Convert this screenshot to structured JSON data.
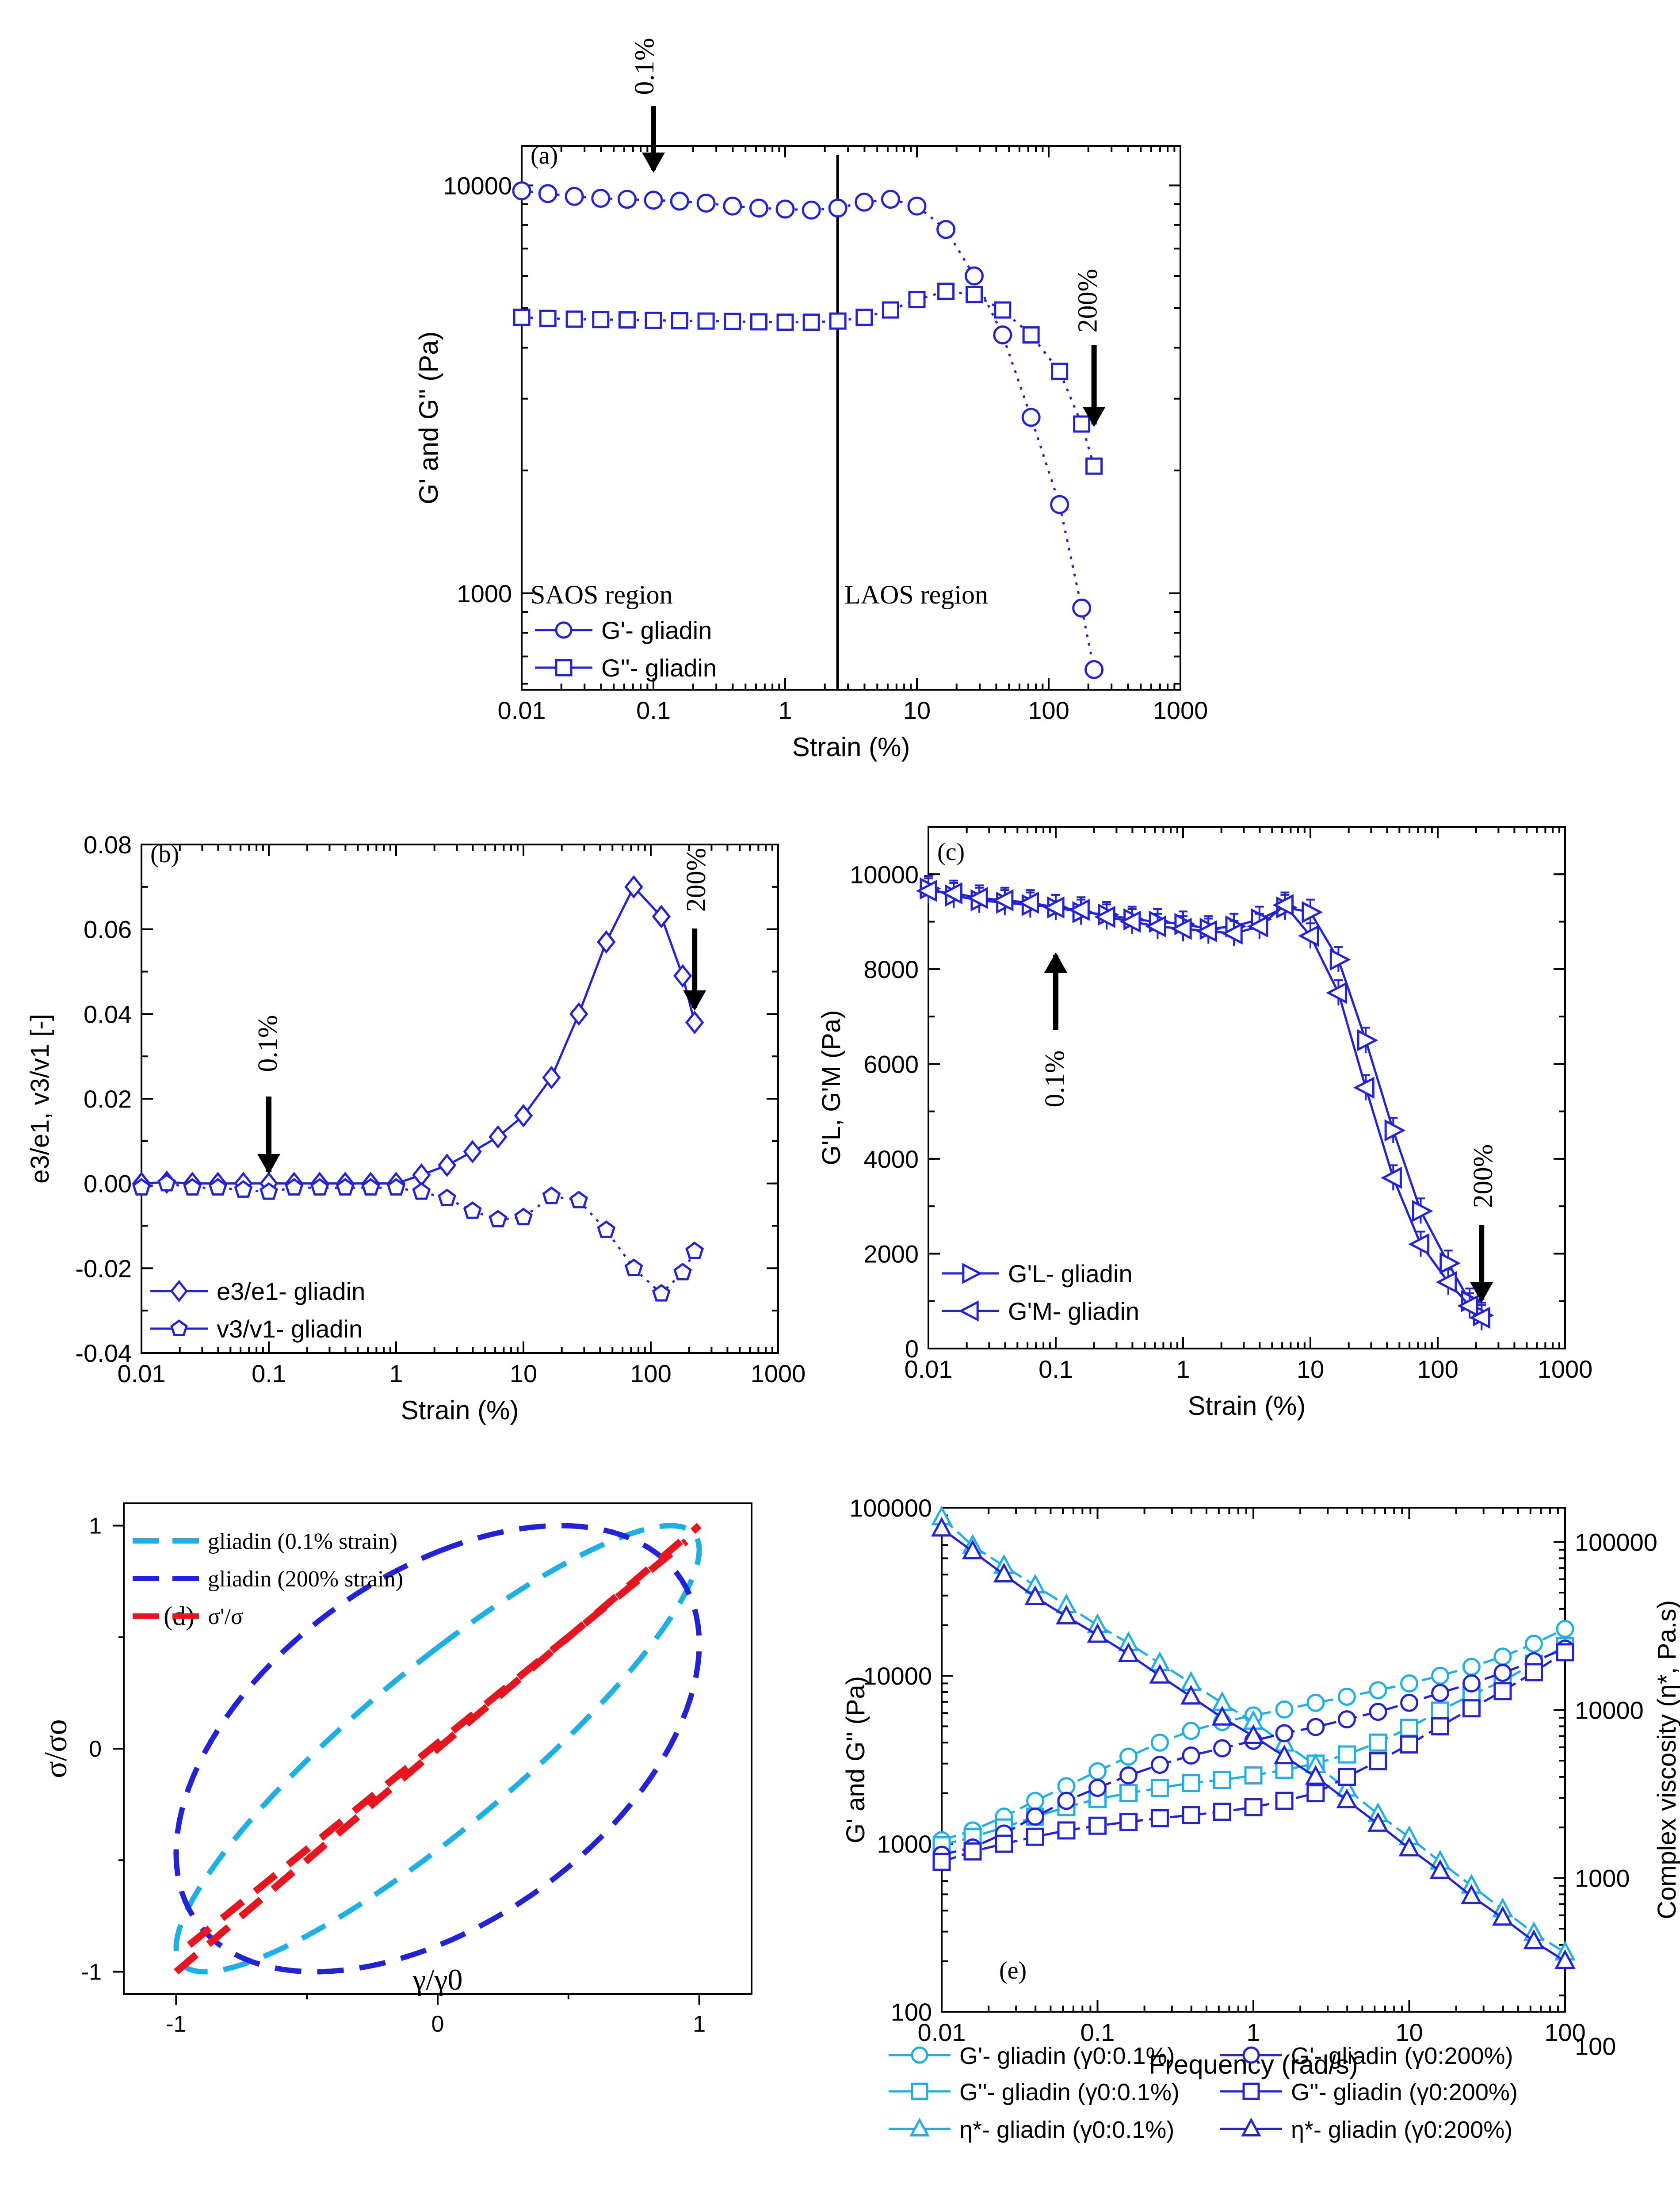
{
  "figure": {
    "colors": {
      "blue": "#2222dd",
      "light_blue": "#1cb0e8",
      "red": "#e8141e",
      "gray": "#777777",
      "black": "#000000"
    }
  },
  "chart_data": [
    {
      "id": "a",
      "panel_label": "(a)",
      "type": "line",
      "xscale": "log",
      "yscale": "log",
      "xlim": [
        0.01,
        1000
      ],
      "ylim": [
        580,
        12500
      ],
      "xlabel": "Strain (%)",
      "ylabel": "G' and G'' (Pa)",
      "xticks": [
        "0.01",
        "0.1",
        "1",
        "10",
        "100",
        "1000"
      ],
      "yticks": [
        "1000",
        "10000"
      ],
      "series": [
        {
          "name": "G'- gliadin",
          "marker": "circle",
          "color": "#2222dd",
          "x": [
            0.01,
            0.0158,
            0.0251,
            0.0398,
            0.0631,
            0.1,
            0.158,
            0.251,
            0.398,
            0.631,
            1,
            1.58,
            2.51,
            3.98,
            6.31,
            10,
            16.6,
            27.2,
            44.7,
            73.5,
            121,
            178,
            221
          ],
          "y": [
            9700,
            9550,
            9400,
            9300,
            9250,
            9200,
            9150,
            9050,
            8900,
            8800,
            8750,
            8700,
            8800,
            9100,
            9250,
            8900,
            7800,
            6000,
            4300,
            2700,
            1650,
            920,
            650
          ]
        },
        {
          "name": "G''- gliadin",
          "marker": "square",
          "color": "#2222dd",
          "x": [
            0.01,
            0.0158,
            0.0251,
            0.0398,
            0.0631,
            0.1,
            0.158,
            0.251,
            0.398,
            0.631,
            1,
            1.58,
            2.51,
            3.98,
            6.31,
            10,
            16.6,
            27.2,
            44.7,
            73.5,
            121,
            178,
            221
          ],
          "y": [
            4750,
            4720,
            4700,
            4690,
            4680,
            4670,
            4660,
            4650,
            4640,
            4630,
            4620,
            4620,
            4650,
            4750,
            4950,
            5250,
            5500,
            5400,
            4950,
            4300,
            3500,
            2600,
            2050
          ]
        }
      ],
      "annotations": [
        {
          "text": "0.1%",
          "x": 0.1,
          "dir": "down"
        },
        {
          "text": "200%",
          "x": 221,
          "dir": "down"
        }
      ],
      "region_divider_x": 2.5,
      "region_labels": [
        "SAOS region",
        "LAOS region"
      ]
    },
    {
      "id": "b",
      "panel_label": "(b)",
      "type": "line",
      "xscale": "log",
      "yscale": "linear",
      "xlim": [
        0.01,
        1000
      ],
      "ylim": [
        -0.04,
        0.08
      ],
      "xlabel": "Strain (%)",
      "ylabel": "e3/e1, v3/v1 [-]",
      "xticks": [
        "0.01",
        "0.1",
        "1",
        "10",
        "100",
        "1000"
      ],
      "yticks": [
        "-0.04",
        "-0.02",
        "0.00",
        "0.02",
        "0.04",
        "0.06",
        "0.08"
      ],
      "series": [
        {
          "name": "e3/e1- gliadin",
          "marker": "diamond",
          "color": "#2222dd",
          "x": [
            0.01,
            0.0158,
            0.0251,
            0.0398,
            0.0631,
            0.1,
            0.158,
            0.251,
            0.398,
            0.631,
            1,
            1.58,
            2.51,
            3.98,
            6.31,
            10,
            16.6,
            27.2,
            44.7,
            73.5,
            121,
            178,
            221
          ],
          "y": [
            0.0,
            0.0003,
            0.0,
            0.0,
            0.0,
            0.0,
            0.0,
            0.0,
            0.0,
            0.0,
            0.0,
            0.002,
            0.0043,
            0.0075,
            0.011,
            0.016,
            0.025,
            0.04,
            0.057,
            0.07,
            0.063,
            0.049,
            0.038
          ]
        },
        {
          "name": "v3/v1- gliadin",
          "marker": "pentagon",
          "color": "#2222dd",
          "x": [
            0.01,
            0.0158,
            0.0251,
            0.0398,
            0.0631,
            0.1,
            0.158,
            0.251,
            0.398,
            0.631,
            1,
            1.58,
            2.51,
            3.98,
            6.31,
            10,
            16.6,
            27.2,
            44.7,
            73.5,
            121,
            178,
            221
          ],
          "y": [
            -0.001,
            0.0,
            -0.001,
            -0.001,
            -0.0015,
            -0.002,
            -0.001,
            -0.001,
            -0.001,
            -0.001,
            -0.001,
            -0.002,
            -0.0035,
            -0.0065,
            -0.0085,
            -0.008,
            -0.003,
            -0.004,
            -0.011,
            -0.02,
            -0.026,
            -0.021,
            -0.016
          ]
        }
      ],
      "annotations": [
        {
          "text": "0.1%",
          "x": 0.1,
          "dir": "down"
        },
        {
          "text": "200%",
          "x": 221,
          "dir": "down"
        }
      ]
    },
    {
      "id": "c",
      "panel_label": "(c)",
      "type": "line",
      "xscale": "log",
      "yscale": "linear",
      "xlim": [
        0.01,
        1000
      ],
      "ylim": [
        0,
        11000
      ],
      "xlabel": "Strain (%)",
      "ylabel": "G'L, G'M (Pa)",
      "xticks": [
        "0.01",
        "0.1",
        "1",
        "10",
        "100",
        "1000"
      ],
      "yticks": [
        "0",
        "2000",
        "4000",
        "6000",
        "8000",
        "10000"
      ],
      "series": [
        {
          "name": "G'L- gliadin",
          "marker": "triangle-right",
          "color": "#2222dd",
          "x": [
            0.01,
            0.0158,
            0.0251,
            0.0398,
            0.0631,
            0.1,
            0.158,
            0.251,
            0.398,
            0.631,
            1,
            1.58,
            2.51,
            3.98,
            6.31,
            10,
            16.6,
            27.2,
            44.7,
            73.5,
            121,
            178,
            221
          ],
          "y": [
            9700,
            9550,
            9450,
            9400,
            9350,
            9300,
            9200,
            9150,
            9050,
            9000,
            8950,
            8850,
            8900,
            9050,
            9300,
            9200,
            8200,
            6500,
            4600,
            2900,
            1800,
            1000,
            700
          ]
        },
        {
          "name": "G'M- gliadin",
          "marker": "triangle-left",
          "color": "#2222dd",
          "x": [
            0.01,
            0.0158,
            0.0251,
            0.0398,
            0.0631,
            0.1,
            0.158,
            0.251,
            0.398,
            0.631,
            1,
            1.58,
            2.51,
            3.98,
            6.31,
            10,
            16.6,
            27.2,
            44.7,
            73.5,
            121,
            178,
            221
          ],
          "y": [
            9650,
            9600,
            9500,
            9450,
            9400,
            9300,
            9250,
            9100,
            9000,
            8900,
            8850,
            8800,
            8750,
            8900,
            9350,
            8700,
            7500,
            5500,
            3600,
            2200,
            1400,
            900,
            650
          ]
        }
      ],
      "annotations": [
        {
          "text": "0.1%",
          "x": 0.1,
          "dir": "up"
        },
        {
          "text": "200%",
          "x": 221,
          "dir": "down"
        }
      ]
    },
    {
      "id": "d",
      "panel_label": "(d)",
      "type": "line",
      "xscale": "linear",
      "yscale": "linear",
      "xlim": [
        -1.2,
        1.2
      ],
      "ylim": [
        -1.1,
        1.1
      ],
      "xlabel": "γ/γ0",
      "ylabel": "σ/σo",
      "xticks": [
        "-1",
        "0",
        "1"
      ],
      "yticks": [
        "-1",
        "0",
        "1"
      ],
      "series": [
        {
          "name": "gliadin (0.1% strain)",
          "style": "dashed",
          "color": "#1cb0e8",
          "kind": "ellipse",
          "phase_deg": 27
        },
        {
          "name": "gliadin (200% strain)",
          "style": "dashed",
          "color": "#2222dd",
          "kind": "ellipse",
          "phase_deg": 62
        },
        {
          "name": "σ'/σ",
          "style": "dashed",
          "color": "#e8141e",
          "kind": "elastic",
          "phase_deg": 0
        }
      ]
    },
    {
      "id": "e",
      "panel_label": "(e)",
      "type": "line",
      "xscale": "log",
      "yscale": "log",
      "xlim": [
        0.01,
        100
      ],
      "ylim": [
        100,
        100000
      ],
      "y2lim": [
        160,
        160000
      ],
      "xlabel": "Frequency (rad/s)",
      "ylabel": "G' and G'' (Pa)",
      "y2label": "Complex viscosity (η*, Pa.s)",
      "xticks": [
        "0.01",
        "0.1",
        "1",
        "10",
        "100"
      ],
      "yticks": [
        "100",
        "1000",
        "10000",
        "100000"
      ],
      "y2ticks": [
        "100",
        "1000",
        "10000",
        "100000"
      ],
      "series": [
        {
          "name": "G'- gliadin (γ0:0.1%)",
          "marker": "circle",
          "color": "#1cb0e8",
          "axis": "left",
          "x": [
            0.01,
            0.0158,
            0.0251,
            0.0398,
            0.0631,
            0.1,
            0.158,
            0.251,
            0.398,
            0.631,
            1,
            1.58,
            2.51,
            3.98,
            6.31,
            10,
            15.8,
            25.1,
            39.8,
            63.1,
            100
          ],
          "y": [
            1050,
            1200,
            1450,
            1800,
            2200,
            2700,
            3300,
            4000,
            4700,
            5300,
            5800,
            6300,
            6900,
            7500,
            8200,
            9000,
            10000,
            11300,
            13000,
            15500,
            19000
          ]
        },
        {
          "name": "G''- gliadin (γ0:0.1%)",
          "marker": "square",
          "color": "#1cb0e8",
          "axis": "left",
          "x": [
            0.01,
            0.0158,
            0.0251,
            0.0398,
            0.0631,
            0.1,
            0.158,
            0.251,
            0.398,
            0.631,
            1,
            1.58,
            2.51,
            3.98,
            6.31,
            10,
            15.8,
            25.1,
            39.8,
            63.1,
            100
          ],
          "y": [
            980,
            1100,
            1250,
            1450,
            1650,
            1850,
            2000,
            2150,
            2300,
            2400,
            2550,
            2750,
            3000,
            3400,
            4000,
            4900,
            6200,
            7700,
            9300,
            11800,
            15000
          ]
        },
        {
          "name": "η*- gliadin (γ0:0.1%)",
          "marker": "triangle",
          "color": "#1cb0e8",
          "axis": "right",
          "x": [
            0.01,
            0.0158,
            0.0251,
            0.0398,
            0.0631,
            0.1,
            0.158,
            0.251,
            0.398,
            0.631,
            1,
            1.58,
            2.51,
            3.98,
            6.31,
            10,
            15.8,
            25.1,
            39.8,
            63.1,
            100
          ],
          "y": [
            140000,
            95000,
            72000,
            55000,
            42000,
            32000,
            25000,
            19000,
            14500,
            11000,
            8500,
            6300,
            4700,
            3400,
            2400,
            1750,
            1250,
            900,
            650,
            470,
            360
          ]
        },
        {
          "name": "G'- gliadin (γ0:200%)",
          "marker": "circle",
          "color": "#2222dd",
          "axis": "left",
          "x": [
            0.01,
            0.0158,
            0.0251,
            0.0398,
            0.0631,
            0.1,
            0.158,
            0.251,
            0.398,
            0.631,
            1,
            1.58,
            2.51,
            3.98,
            6.31,
            10,
            15.8,
            25.1,
            39.8,
            63.1,
            100
          ],
          "y": [
            860,
            950,
            1150,
            1450,
            1800,
            2150,
            2550,
            2950,
            3350,
            3700,
            4100,
            4550,
            4950,
            5500,
            6100,
            6900,
            7900,
            9000,
            10400,
            12200,
            14500
          ]
        },
        {
          "name": "G''- gliadin (γ0:200%)",
          "marker": "square",
          "color": "#2222dd",
          "axis": "left",
          "x": [
            0.01,
            0.0158,
            0.0251,
            0.0398,
            0.0631,
            0.1,
            0.158,
            0.251,
            0.398,
            0.631,
            1,
            1.58,
            2.51,
            3.98,
            6.31,
            10,
            15.8,
            25.1,
            39.8,
            63.1,
            100
          ],
          "y": [
            780,
            900,
            1000,
            1100,
            1200,
            1280,
            1350,
            1420,
            1480,
            1550,
            1650,
            1800,
            2000,
            2500,
            3100,
            3900,
            5000,
            6400,
            8100,
            10500,
            13800
          ]
        },
        {
          "name": "η*- gliadin (γ0:200%)",
          "marker": "triangle",
          "color": "#2222dd",
          "axis": "right",
          "x": [
            0.01,
            0.0158,
            0.0251,
            0.0398,
            0.0631,
            0.1,
            0.158,
            0.251,
            0.398,
            0.631,
            1,
            1.58,
            2.51,
            3.98,
            6.31,
            10,
            15.8,
            25.1,
            39.8,
            63.1,
            100
          ],
          "y": [
            120000,
            88000,
            64000,
            47000,
            36000,
            28000,
            21500,
            16000,
            12000,
            9000,
            7000,
            5300,
            4000,
            2900,
            2100,
            1500,
            1100,
            780,
            580,
            420,
            320
          ]
        }
      ]
    }
  ]
}
